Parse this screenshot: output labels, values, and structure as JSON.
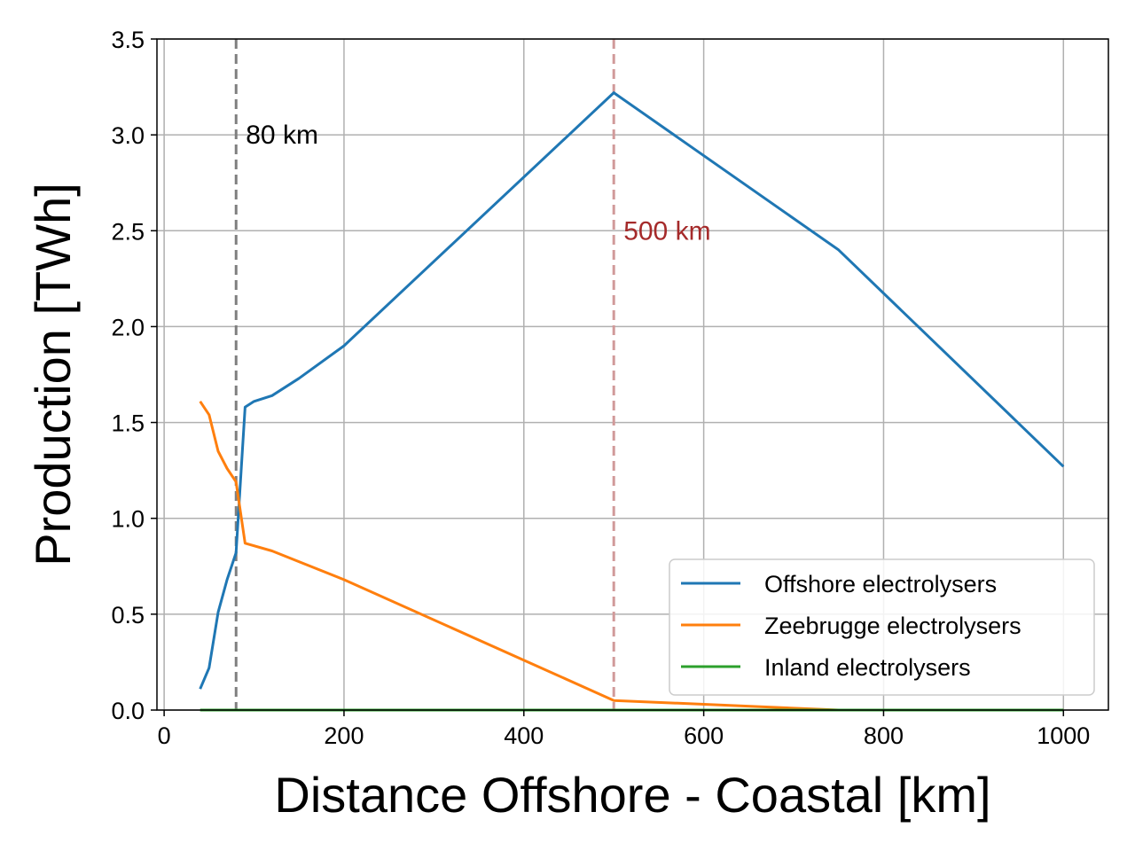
{
  "chart_data": {
    "type": "line",
    "xlabel": "Distance Offshore - Coastal [km]",
    "ylabel": "Production [TWh]",
    "xlim": [
      -8,
      1050
    ],
    "ylim": [
      0,
      3.5
    ],
    "xticks": [
      0,
      200,
      400,
      600,
      800,
      1000
    ],
    "yticks": [
      0.0,
      0.5,
      1.0,
      1.5,
      2.0,
      2.5,
      3.0,
      3.5
    ],
    "xtick_labels": [
      "0",
      "200",
      "400",
      "600",
      "800",
      "1000"
    ],
    "ytick_labels": [
      "0.0",
      "0.5",
      "1.0",
      "1.5",
      "2.0",
      "2.5",
      "3.0",
      "3.5"
    ],
    "grid": true,
    "legend_position": "lower-right",
    "series": [
      {
        "name": "Offshore electrolysers",
        "color": "#1f77b4",
        "x": [
          40,
          50,
          60,
          70,
          80,
          90,
          100,
          120,
          150,
          200,
          500,
          750,
          1000
        ],
        "y": [
          0.11,
          0.22,
          0.51,
          0.68,
          0.82,
          1.58,
          1.61,
          1.64,
          1.73,
          1.9,
          3.22,
          2.4,
          1.27
        ]
      },
      {
        "name": "Zeebrugge electrolysers",
        "color": "#ff7f0e",
        "x": [
          40,
          50,
          60,
          70,
          80,
          90,
          120,
          200,
          500,
          750,
          1000
        ],
        "y": [
          1.61,
          1.54,
          1.35,
          1.26,
          1.19,
          0.87,
          0.83,
          0.68,
          0.05,
          0.0,
          0.0
        ]
      },
      {
        "name": "Inland electrolysers",
        "color": "#2ca02c",
        "x": [
          40,
          1000
        ],
        "y": [
          0.0,
          0.0
        ]
      }
    ],
    "vlines": [
      {
        "x": 80,
        "label": "80 km",
        "color": "#7f7f7f",
        "label_color": "#000000",
        "label_y": 3.0
      },
      {
        "x": 500,
        "label": "500 km",
        "color": "#d19a9a",
        "label_color": "#a52a2a",
        "label_y": 2.5
      }
    ]
  }
}
